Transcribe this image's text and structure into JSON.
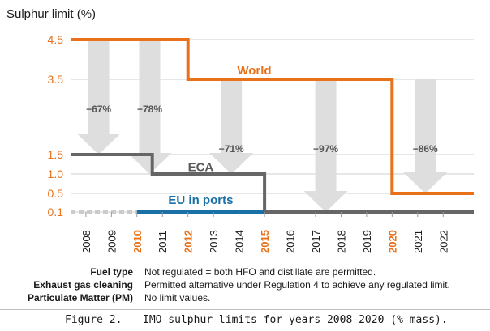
{
  "chart_data": {
    "type": "line",
    "title": "Sulphur limit (%)",
    "ytick_values": [
      0.1,
      0.5,
      1.0,
      1.5,
      3.5,
      4.5
    ],
    "ytick_labels": [
      "0.1",
      "0.5",
      "1.0",
      "1.5",
      "3.5",
      "4.5"
    ],
    "categories": [
      "2008",
      "2009",
      "2010",
      "2011",
      "2012",
      "2013",
      "2014",
      "2015",
      "2016",
      "2017",
      "2018",
      "2019",
      "2020",
      "2021",
      "2022"
    ],
    "highlight_years": [
      "2010",
      "2012",
      "2015",
      "2020"
    ],
    "x_range": [
      2007.4,
      2023.2
    ],
    "series": [
      {
        "name": "World",
        "color": "#e8711a",
        "points": [
          [
            2007.4,
            4.5
          ],
          [
            2012,
            4.5
          ],
          [
            2012,
            3.5
          ],
          [
            2020,
            3.5
          ],
          [
            2020,
            0.5
          ],
          [
            2023.2,
            0.5
          ]
        ]
      },
      {
        "name": "ECA",
        "color": "#666666",
        "points": [
          [
            2007.4,
            1.5
          ],
          [
            2010.6,
            1.5
          ],
          [
            2010.6,
            1.0
          ],
          [
            2015,
            1.0
          ],
          [
            2015,
            0.1
          ],
          [
            2023.2,
            0.1
          ]
        ]
      },
      {
        "name": "EU in ports",
        "color": "#1a6fa6",
        "points": [
          [
            2010,
            0.1
          ],
          [
            2015,
            0.1
          ]
        ]
      }
    ],
    "pre_period": {
      "from": 2007.4,
      "to": 2010,
      "value": 0.1
    },
    "reductions": [
      {
        "label": "−67%",
        "x": 2008.5,
        "top": 4.5,
        "bottom": 1.5
      },
      {
        "label": "−78%",
        "x": 2010.5,
        "top": 4.5,
        "bottom": 1.0
      },
      {
        "label": "−71%",
        "x": 2013.7,
        "top": 3.5,
        "bottom": 1.0
      },
      {
        "label": "−97%",
        "x": 2017.4,
        "top": 3.5,
        "bottom": 0.1
      },
      {
        "label": "−86%",
        "x": 2021.3,
        "top": 3.5,
        "bottom": 0.5
      }
    ],
    "annotations": [
      {
        "text": "World",
        "x": 2014.6,
        "y": 3.75,
        "color": "#e8711a"
      },
      {
        "text": "ECA",
        "x": 2012.5,
        "y": 1.2,
        "color": "#595959"
      },
      {
        "text": "EU in ports",
        "x": 2012.5,
        "y": 0.38,
        "color": "#1a6fa6"
      }
    ],
    "colors": {
      "accent": "#e8711a",
      "grid": "#cfcfcf",
      "arrow": "#dedede",
      "axis_text": "#1a1a1a"
    }
  },
  "notes": [
    {
      "label": "Fuel type",
      "value": "Not regulated = both HFO and distillate are permitted."
    },
    {
      "label": "Exhaust gas cleaning",
      "value": "Permitted alternative under Regulation 4 to achieve any regulated limit."
    },
    {
      "label": "Particulate Matter (PM)",
      "value": "No limit values."
    }
  ],
  "caption": {
    "label": "Figure 2.",
    "text": "IMO sulphur limits for years 2008-2020 (% mass)."
  }
}
